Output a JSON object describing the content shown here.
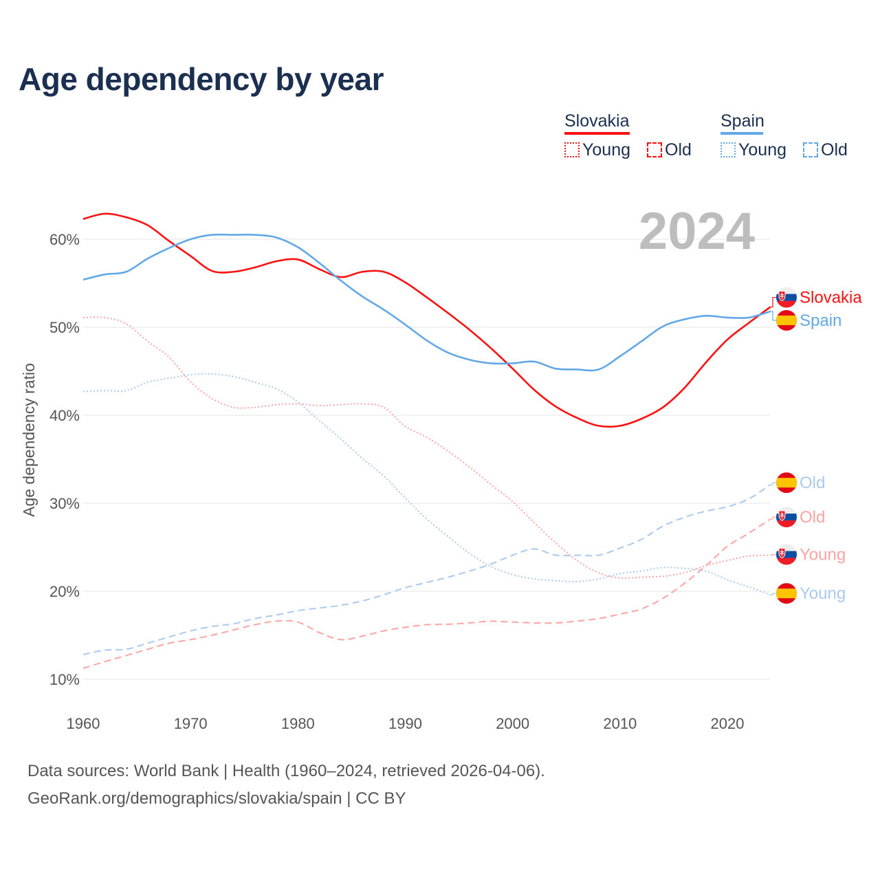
{
  "title": "Age dependency by year",
  "legend": {
    "groups": [
      {
        "name": "Slovakia",
        "color": "#ff1010",
        "items": [
          "Young",
          "Old"
        ]
      },
      {
        "name": "Spain",
        "color": "#62a8e8",
        "items": [
          "Young",
          "Old"
        ]
      }
    ]
  },
  "year_watermark": "2024",
  "footer": {
    "line1": "Data sources: World Bank | Health (1960–2024, retrieved 2026-04-06).",
    "line2": "GeoRank.org/demographics/slovakia/spain | CC BY"
  },
  "chart_data": {
    "type": "line",
    "title": "Age dependency by year",
    "xlabel": "",
    "ylabel": "Age dependency ratio",
    "xlim": [
      1960,
      2024
    ],
    "ylim": [
      10,
      63
    ],
    "x_ticks": [
      "1960",
      "1970",
      "1980",
      "1990",
      "2000",
      "2010",
      "2020"
    ],
    "y_ticks": [
      "10%",
      "20%",
      "30%",
      "40%",
      "50%",
      "60%"
    ],
    "grid": true,
    "legend_position": "top-right",
    "x": [
      1960,
      1962,
      1964,
      1966,
      1968,
      1970,
      1972,
      1974,
      1976,
      1978,
      1980,
      1982,
      1984,
      1986,
      1988,
      1990,
      1992,
      1994,
      1996,
      1998,
      2000,
      2002,
      2004,
      2006,
      2008,
      2010,
      2012,
      2014,
      2016,
      2018,
      2020,
      2022,
      2024
    ],
    "series": [
      {
        "name": "Slovakia",
        "label": "Slovakia",
        "country": "Slovakia",
        "style": "solid",
        "color": "#ff1010",
        "values": [
          62.3,
          62.9,
          62.5,
          61.6,
          59.8,
          58.1,
          56.4,
          56.3,
          56.8,
          57.5,
          57.7,
          56.6,
          55.7,
          56.3,
          56.3,
          55.1,
          53.4,
          51.6,
          49.7,
          47.6,
          45.3,
          42.9,
          41.0,
          39.7,
          38.8,
          38.8,
          39.6,
          40.9,
          43.1,
          46.0,
          48.6,
          50.5,
          52.3
        ]
      },
      {
        "name": "Spain",
        "label": "Spain",
        "country": "Spain",
        "style": "solid",
        "color": "#62a8e8",
        "values": [
          55.4,
          56.0,
          56.3,
          57.8,
          59.0,
          60.0,
          60.5,
          60.5,
          60.5,
          60.2,
          59.1,
          57.3,
          55.3,
          53.5,
          52.0,
          50.3,
          48.5,
          47.1,
          46.3,
          45.9,
          45.9,
          46.1,
          45.3,
          45.2,
          45.2,
          46.7,
          48.4,
          50.1,
          50.9,
          51.3,
          51.1,
          51.1,
          51.8
        ]
      },
      {
        "name": "Spain Old",
        "label": "Old",
        "country": "Spain",
        "style": "dashed",
        "color": "#a9c9ef",
        "values": [
          12.8,
          13.3,
          13.4,
          14.1,
          14.8,
          15.5,
          16.0,
          16.3,
          16.9,
          17.3,
          17.8,
          18.1,
          18.4,
          18.9,
          19.6,
          20.4,
          21.0,
          21.6,
          22.3,
          23.1,
          24.1,
          24.8,
          24.1,
          24.1,
          24.1,
          24.9,
          25.9,
          27.4,
          28.4,
          29.1,
          29.6,
          30.5,
          32.1
        ]
      },
      {
        "name": "Slovakia Old",
        "label": "Old",
        "country": "Slovakia",
        "style": "dashed",
        "color": "#ffa3a3",
        "values": [
          11.25,
          12.0,
          12.7,
          13.4,
          14.1,
          14.5,
          15.0,
          15.6,
          16.2,
          16.6,
          16.5,
          15.3,
          14.5,
          14.9,
          15.5,
          15.9,
          16.2,
          16.25,
          16.4,
          16.6,
          16.5,
          16.4,
          16.4,
          16.6,
          16.9,
          17.4,
          18.0,
          19.2,
          20.9,
          22.9,
          25.1,
          26.6,
          28.2
        ]
      },
      {
        "name": "Slovakia Young",
        "label": "Young",
        "country": "Slovakia",
        "style": "dotted",
        "color": "#ffa3a3",
        "values": [
          51.1,
          51.1,
          50.4,
          48.4,
          46.6,
          43.8,
          41.9,
          40.9,
          40.9,
          41.2,
          41.3,
          41.1,
          41.2,
          41.3,
          40.9,
          38.75,
          37.5,
          35.9,
          34.1,
          32.1,
          30.2,
          27.8,
          25.5,
          23.5,
          22.1,
          21.5,
          21.6,
          21.7,
          22.1,
          22.9,
          23.5,
          24.0,
          24.1
        ]
      },
      {
        "name": "Spain Young",
        "label": "Young",
        "country": "Spain",
        "style": "dotted",
        "color": "#a9c9ef",
        "values": [
          42.7,
          42.8,
          42.8,
          43.75,
          44.2,
          44.6,
          44.7,
          44.4,
          43.75,
          43.0,
          41.5,
          39.4,
          37.3,
          35.1,
          33.1,
          30.6,
          28.2,
          26.2,
          24.3,
          22.8,
          21.9,
          21.4,
          21.2,
          21.1,
          21.4,
          22.0,
          22.3,
          22.7,
          22.6,
          22.3,
          21.3,
          20.5,
          19.6
        ]
      }
    ]
  }
}
